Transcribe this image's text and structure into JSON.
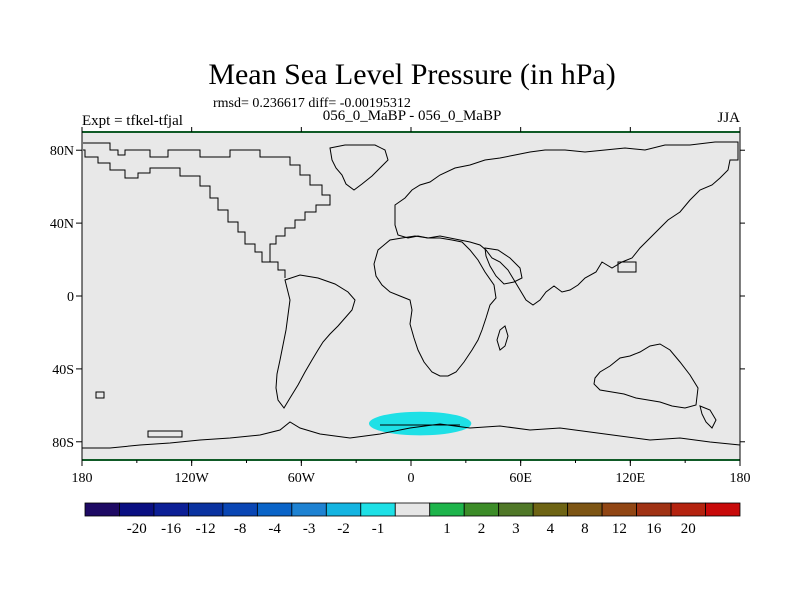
{
  "title": "Mean Sea Level Pressure (in hPa)",
  "stats_line": "rmsd= 0.236617 diff= -0.00195312",
  "left_label": "Expt = tfkel-tfjal",
  "center_label": "056_0_MaBP - 056_0_MaBP",
  "right_label": "JJA",
  "chart_data": {
    "type": "heatmap",
    "projection": "cylindrical-equidistant",
    "lon_range": [
      -180,
      180
    ],
    "lat_range": [
      -90,
      90
    ],
    "x_ticks": [
      {
        "value": -180,
        "label": "180"
      },
      {
        "value": -120,
        "label": "120W"
      },
      {
        "value": -60,
        "label": "60W"
      },
      {
        "value": 0,
        "label": "0"
      },
      {
        "value": 60,
        "label": "60E"
      },
      {
        "value": 120,
        "label": "120E"
      },
      {
        "value": 180,
        "label": "180"
      }
    ],
    "y_ticks": [
      {
        "value": 80,
        "label": "80N"
      },
      {
        "value": 40,
        "label": "40N"
      },
      {
        "value": 0,
        "label": "0"
      },
      {
        "value": -40,
        "label": "40S"
      },
      {
        "value": -80,
        "label": "80S"
      }
    ],
    "background_color": "#e8e8e8",
    "anomaly_regions": [
      {
        "value_range": [
          -2,
          -1
        ],
        "color": "#1ee0e6",
        "lon_center": 5,
        "lat_center": -70,
        "lon_halfwidth": 28,
        "lat_halfwidth": 6.5
      }
    ],
    "colorbar": {
      "colors": [
        "#1e0a64",
        "#0a0f82",
        "#0c1f96",
        "#0a32a0",
        "#0a46b4",
        "#0a64c8",
        "#1e82d2",
        "#14b4e1",
        "#1ee0e6",
        "#e6e6e6",
        "#1eb44b",
        "#3c8c28",
        "#507828",
        "#6e6414",
        "#7d5514",
        "#914614",
        "#a03214",
        "#b4230f",
        "#c80a0a"
      ],
      "labels": [
        "-20",
        "-16",
        "-12",
        "-8",
        "-4",
        "-3",
        "-2",
        "-1",
        "1",
        "2",
        "3",
        "4",
        "8",
        "12",
        "16",
        "20"
      ]
    }
  }
}
